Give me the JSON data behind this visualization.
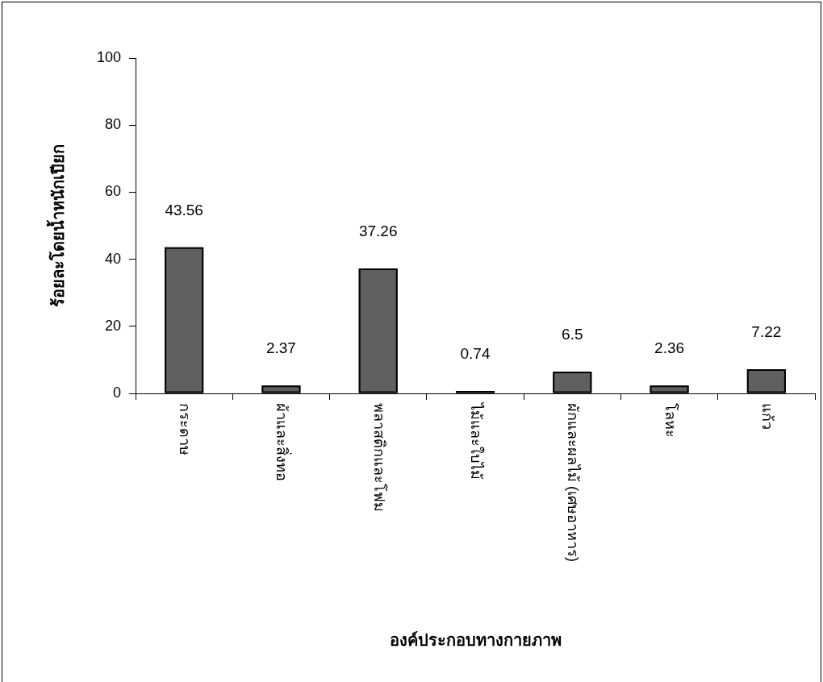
{
  "chart_data": {
    "type": "bar",
    "xlabel": "องค์ประกอบทางกายภาพ",
    "ylabel": "ร้อยละโดยน้ำหนักเปียก",
    "categories": [
      "กระดาษ",
      "ผ้าและสิ่งทอ",
      "พลาสติกและโฟม",
      "ไม้และใบไม้",
      "ผักและผลไม้ (เศษอาหาร)",
      "โลหะ",
      "แก้ว"
    ],
    "values": [
      43.56,
      2.37,
      37.26,
      0.74,
      6.5,
      2.36,
      7.22
    ],
    "color": "#606060",
    "ylim": [
      0,
      100
    ],
    "yticks": [
      0,
      20,
      40,
      60,
      80,
      100
    ],
    "data_labels": true
  }
}
